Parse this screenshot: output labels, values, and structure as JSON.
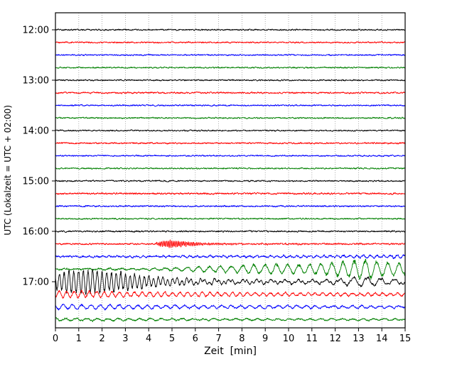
{
  "colors": {
    "black": "#000000",
    "red": "#ff0000",
    "blue": "#0000ff",
    "green": "#008000",
    "grid": "#999999",
    "axis": "#000000"
  },
  "chart_data": {
    "type": "line",
    "title": "",
    "xlabel": "Zeit  [min]",
    "ylabel": "UTC (Lokalzeit = UTC + 02:00)",
    "x_range": [
      0,
      15
    ],
    "x_ticks": [
      "0",
      "1",
      "2",
      "3",
      "4",
      "5",
      "6",
      "7",
      "8",
      "9",
      "10",
      "11",
      "12",
      "13",
      "14",
      "15"
    ],
    "grid": "vertical-dotted-every-minute",
    "description": "Helicorder-style seismogram: 24 traces of 15 minutes each, 12:00-18:00 UTC, colors cycling black/red/blue/green; seismic event onset ~16:20 with burst in 16:15 trace, growing oscillations in 16:45 trace, maximum amplitude at start of 17:00 trace, coda decaying through 17:45.",
    "traces": [
      {
        "time": "12:00",
        "color": "black",
        "noise": 1.0,
        "events": []
      },
      {
        "time": "12:15",
        "color": "red",
        "noise": 1.0,
        "events": []
      },
      {
        "time": "12:30",
        "color": "blue",
        "noise": 1.0,
        "events": []
      },
      {
        "time": "12:45",
        "color": "green",
        "noise": 1.0,
        "events": []
      },
      {
        "time": "13:00",
        "color": "black",
        "noise": 1.0,
        "events": []
      },
      {
        "time": "13:15",
        "color": "red",
        "noise": 1.1,
        "events": []
      },
      {
        "time": "13:30",
        "color": "blue",
        "noise": 1.0,
        "events": []
      },
      {
        "time": "13:45",
        "color": "green",
        "noise": 1.0,
        "events": []
      },
      {
        "time": "14:00",
        "color": "black",
        "noise": 1.0,
        "events": []
      },
      {
        "time": "14:15",
        "color": "red",
        "noise": 1.1,
        "events": []
      },
      {
        "time": "14:30",
        "color": "blue",
        "noise": 1.0,
        "events": []
      },
      {
        "time": "14:45",
        "color": "green",
        "noise": 1.0,
        "events": []
      },
      {
        "time": "15:00",
        "color": "black",
        "noise": 1.0,
        "events": []
      },
      {
        "time": "15:15",
        "color": "red",
        "noise": 1.2,
        "events": []
      },
      {
        "time": "15:30",
        "color": "blue",
        "noise": 1.1,
        "events": []
      },
      {
        "time": "15:45",
        "color": "green",
        "noise": 1.0,
        "events": []
      },
      {
        "time": "16:00",
        "color": "black",
        "noise": 1.1,
        "events": []
      },
      {
        "time": "16:15",
        "color": "red",
        "noise": 1.1,
        "events": [
          {
            "freq": 14,
            "env": [
              [
                4.2,
                0
              ],
              [
                4.5,
                3.0
              ],
              [
                4.9,
                4.5
              ],
              [
                5.5,
                3.0
              ],
              [
                6.2,
                1.5
              ],
              [
                7.0,
                0.6
              ],
              [
                15,
                0.3
              ]
            ]
          }
        ]
      },
      {
        "time": "16:30",
        "color": "blue",
        "noise": 1.3,
        "events": [
          {
            "freq": 3.5,
            "env": [
              [
                0,
                0.5
              ],
              [
                5,
                0.8
              ],
              [
                9,
                1.2
              ],
              [
                13,
                1.6
              ],
              [
                15,
                1.8
              ]
            ]
          }
        ]
      },
      {
        "time": "16:45",
        "color": "green",
        "noise": 1.2,
        "events": [
          {
            "freq": 2.1,
            "env": [
              [
                0,
                0.8
              ],
              [
                3.5,
                1.0
              ],
              [
                5,
                2.0
              ],
              [
                6.5,
                3.5
              ],
              [
                8,
                5.0
              ],
              [
                9.5,
                6.5
              ],
              [
                10.5,
                5.5
              ],
              [
                11.5,
                7.0
              ],
              [
                12.5,
                10.0
              ],
              [
                13.3,
                12.0
              ],
              [
                14,
                9.0
              ],
              [
                15,
                7.0
              ]
            ]
          }
        ]
      },
      {
        "time": "17:00",
        "color": "black",
        "noise": 1.2,
        "events": [
          {
            "freq": 5.0,
            "env": [
              [
                0,
                9.0
              ],
              [
                0.6,
                14.0
              ],
              [
                1.6,
                15.0
              ],
              [
                2.6,
                12.0
              ],
              [
                3.6,
                8.0
              ],
              [
                4.6,
                5.0
              ],
              [
                6,
                2.5
              ],
              [
                8,
                1.5
              ],
              [
                15,
                0.8
              ]
            ]
          },
          {
            "freq": 1.7,
            "env": [
              [
                0,
                0
              ],
              [
                3,
                1.5
              ],
              [
                6,
                2.5
              ],
              [
                9,
                2.2
              ],
              [
                11.5,
                2.0
              ],
              [
                12.5,
                4.5
              ],
              [
                13.3,
                6.0
              ],
              [
                14.2,
                3.5
              ],
              [
                15,
                3.0
              ]
            ]
          }
        ]
      },
      {
        "time": "17:15",
        "color": "red",
        "noise": 1.2,
        "events": [
          {
            "freq": 3.1,
            "env": [
              [
                0,
                4.5
              ],
              [
                1.5,
                4.0
              ],
              [
                3,
                3.2
              ],
              [
                5,
                2.6
              ],
              [
                8,
                2.2
              ],
              [
                11,
                2.0
              ],
              [
                15,
                1.7
              ]
            ]
          }
        ]
      },
      {
        "time": "17:30",
        "color": "blue",
        "noise": 1.2,
        "events": [
          {
            "freq": 2.5,
            "env": [
              [
                0,
                3.0
              ],
              [
                3,
                2.4
              ],
              [
                6,
                2.0
              ],
              [
                10,
                1.7
              ],
              [
                15,
                1.4
              ]
            ]
          }
        ]
      },
      {
        "time": "17:45",
        "color": "green",
        "noise": 1.1,
        "events": [
          {
            "freq": 2.2,
            "env": [
              [
                0,
                1.6
              ],
              [
                5,
                1.3
              ],
              [
                10,
                1.1
              ],
              [
                15,
                0.9
              ]
            ]
          }
        ]
      }
    ]
  }
}
